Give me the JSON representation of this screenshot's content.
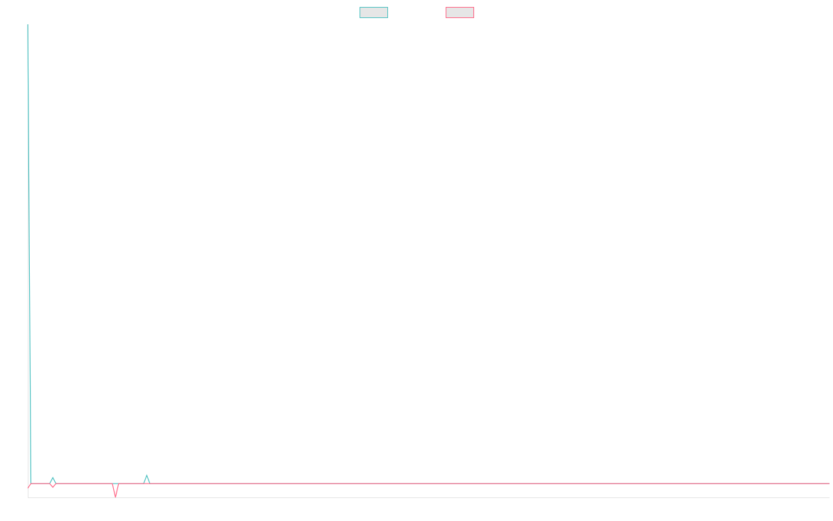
{
  "chart_data": {
    "type": "line",
    "x": [
      0,
      1,
      7,
      8,
      9,
      27,
      28,
      29,
      37,
      38,
      39,
      256
    ],
    "xlim": [
      0,
      256
    ],
    "ylim": [
      -3,
      100
    ],
    "legend": "top",
    "series": [
      {
        "color": "#4bc0c0",
        "values": [
          100,
          0,
          0,
          1.3,
          0,
          0,
          0,
          0,
          0,
          1.8,
          0,
          0
        ]
      },
      {
        "color": "#ff6384",
        "values": [
          -1,
          0,
          0,
          -0.8,
          0,
          0,
          -3,
          0,
          0,
          0,
          0,
          0
        ]
      }
    ]
  }
}
